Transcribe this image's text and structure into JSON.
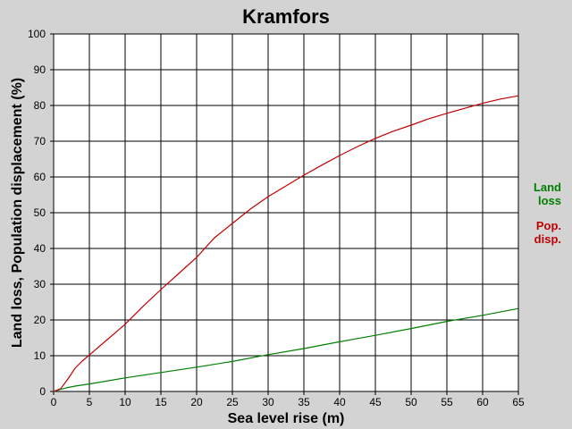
{
  "chart_data": {
    "type": "line",
    "title": "Kramfors",
    "xlabel": "Sea level rise (m)",
    "ylabel": "Land loss, Population displacement (%)",
    "xlim": [
      0,
      65
    ],
    "ylim": [
      0,
      100
    ],
    "x_ticks": [
      0,
      5,
      10,
      15,
      20,
      25,
      30,
      35,
      40,
      45,
      50,
      55,
      60,
      65
    ],
    "y_ticks": [
      0,
      10,
      20,
      30,
      40,
      50,
      60,
      70,
      80,
      90,
      100
    ],
    "grid": true,
    "legend_position": "right",
    "series": [
      {
        "name": "Land loss",
        "legend_lines": [
          "Land",
          "loss"
        ],
        "color": "#008000",
        "points": [
          [
            0,
            0
          ],
          [
            1,
            0.6
          ],
          [
            2,
            1.1
          ],
          [
            3,
            1.5
          ],
          [
            5,
            2.1
          ],
          [
            10,
            3.8
          ],
          [
            15,
            5.3
          ],
          [
            20,
            6.8
          ],
          [
            25,
            8.4
          ],
          [
            30,
            10.3
          ],
          [
            35,
            12.0
          ],
          [
            40,
            13.9
          ],
          [
            45,
            15.7
          ],
          [
            50,
            17.6
          ],
          [
            55,
            19.6
          ],
          [
            60,
            21.3
          ],
          [
            65,
            23.2
          ]
        ]
      },
      {
        "name": "Pop. disp.",
        "legend_lines": [
          "Pop.",
          "disp."
        ],
        "color": "#c00000",
        "points": [
          [
            0,
            0
          ],
          [
            1,
            0.8
          ],
          [
            2,
            3.5
          ],
          [
            3,
            6.5
          ],
          [
            4,
            8.5
          ],
          [
            5,
            10.2
          ],
          [
            7.5,
            14.5
          ],
          [
            10,
            18.8
          ],
          [
            12.5,
            23.8
          ],
          [
            15,
            28.5
          ],
          [
            17.5,
            33.0
          ],
          [
            20,
            37.5
          ],
          [
            22.5,
            43.0
          ],
          [
            25,
            47.0
          ],
          [
            27.5,
            51.0
          ],
          [
            30,
            54.5
          ],
          [
            32.5,
            57.5
          ],
          [
            35,
            60.5
          ],
          [
            37.5,
            63.3
          ],
          [
            40,
            66.0
          ],
          [
            42.5,
            68.5
          ],
          [
            45,
            70.8
          ],
          [
            47.5,
            72.8
          ],
          [
            50,
            74.5
          ],
          [
            52.5,
            76.3
          ],
          [
            55,
            77.8
          ],
          [
            57.5,
            79.2
          ],
          [
            60,
            80.6
          ],
          [
            62.5,
            81.8
          ],
          [
            65,
            82.7
          ]
        ]
      }
    ]
  }
}
